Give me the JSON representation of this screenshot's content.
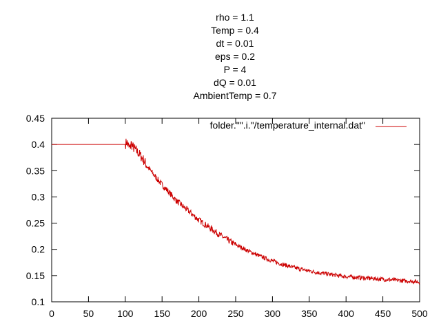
{
  "chart_data": {
    "type": "line",
    "title_lines": [
      "rho = 1.1",
      "Temp = 0.4",
      "dt = 0.01",
      "eps = 0.2",
      "P = 4",
      "dQ = 0.01",
      "AmbientTemp = 0.7"
    ],
    "xlabel": "",
    "ylabel": "",
    "xlim": [
      0,
      500
    ],
    "ylim": [
      0.1,
      0.45
    ],
    "x_ticks": [
      0,
      50,
      100,
      150,
      200,
      250,
      300,
      350,
      400,
      450,
      500
    ],
    "y_ticks": [
      0.1,
      0.15,
      0.2,
      0.25,
      0.3,
      0.35,
      0.4,
      0.45
    ],
    "x_tick_labels": [
      "0",
      "50",
      "100",
      "150",
      "200",
      "250",
      "300",
      "350",
      "400",
      "450",
      "500"
    ],
    "y_tick_labels": [
      "0.1",
      "0.15",
      "0.2",
      "0.25",
      "0.3",
      "0.35",
      "0.4",
      "0.45"
    ],
    "grid": false,
    "legend_position": "top-right",
    "series": [
      {
        "name": "folder.\"\".i.\"/temperature_internal.dat\"",
        "color": "#cc0000",
        "x": [
          0,
          20,
          40,
          60,
          80,
          100,
          102,
          104,
          106,
          108,
          110,
          115,
          120,
          125,
          130,
          140,
          150,
          160,
          170,
          180,
          190,
          200,
          210,
          220,
          230,
          240,
          250,
          260,
          270,
          280,
          290,
          300,
          310,
          320,
          330,
          340,
          350,
          360,
          370,
          380,
          390,
          400,
          410,
          420,
          430,
          440,
          450,
          460,
          470,
          480,
          490,
          500
        ],
        "y": [
          0.4,
          0.4,
          0.4,
          0.4,
          0.4,
          0.4,
          0.405,
          0.398,
          0.392,
          0.402,
          0.396,
          0.388,
          0.38,
          0.37,
          0.358,
          0.34,
          0.323,
          0.308,
          0.292,
          0.28,
          0.268,
          0.256,
          0.246,
          0.236,
          0.226,
          0.217,
          0.209,
          0.202,
          0.195,
          0.189,
          0.183,
          0.178,
          0.173,
          0.169,
          0.165,
          0.162,
          0.159,
          0.156,
          0.154,
          0.152,
          0.15,
          0.148,
          0.147,
          0.146,
          0.145,
          0.144,
          0.143,
          0.142,
          0.141,
          0.14,
          0.139,
          0.138
        ]
      }
    ]
  }
}
